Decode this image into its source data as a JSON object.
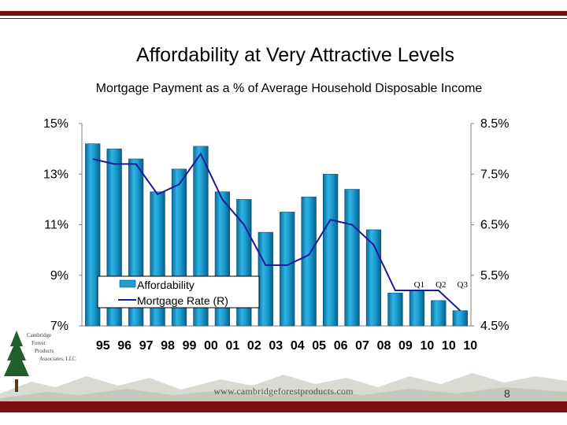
{
  "slide": {
    "title": "Affordability at Very Attractive Levels",
    "subtitle": "Mortgage Payment as a % of Average Household Disposable Income",
    "website": "www.cambridgeforestproducts.com",
    "page_number": "8"
  },
  "logo": {
    "line1": "Cambridge",
    "line2": "Forest",
    "line3": "Products",
    "line4": "Associates, LLC"
  },
  "colors": {
    "brand_red": "#7a0e10",
    "bar_fill": "#1f9fd0",
    "bar_dark": "#0a6f99",
    "line": "#1a1a9c"
  },
  "chart_data": {
    "type": "bar",
    "categories": [
      "95",
      "96",
      "97",
      "98",
      "99",
      "00",
      "01",
      "02",
      "03",
      "04",
      "05",
      "06",
      "07",
      "08",
      "09",
      "10",
      "10",
      "10"
    ],
    "quarter_labels": [
      "Q1",
      "Q2",
      "Q3"
    ],
    "series": [
      {
        "name": "Affordability",
        "axis": "left",
        "type": "bar",
        "values": [
          14.2,
          14.0,
          13.6,
          12.3,
          13.2,
          14.1,
          12.3,
          12.0,
          10.7,
          11.5,
          12.1,
          13.0,
          12.4,
          10.8,
          8.3,
          8.4,
          8.0,
          7.6
        ]
      },
      {
        "name": "Mortgage Rate (R)",
        "axis": "right",
        "type": "line",
        "values": [
          7.8,
          7.7,
          7.7,
          7.1,
          7.3,
          7.9,
          7.0,
          6.5,
          5.7,
          5.7,
          5.9,
          6.6,
          6.5,
          6.1,
          5.2,
          5.2,
          5.2,
          4.8
        ]
      }
    ],
    "left_axis": {
      "ylim": [
        7,
        15
      ],
      "ticks": [
        "15%",
        "13%",
        "11%",
        "9%",
        "7%"
      ],
      "tick_values": [
        15,
        13,
        11,
        9,
        7
      ]
    },
    "right_axis": {
      "ylim": [
        4.5,
        8.5
      ],
      "ticks": [
        "8.5%",
        "7.5%",
        "6.5%",
        "5.5%",
        "4.5%"
      ],
      "tick_values": [
        8.5,
        7.5,
        6.5,
        5.5,
        4.5
      ]
    },
    "legend": {
      "position": "bottom-left",
      "entries": [
        "Affordability",
        "Mortgage Rate (R)"
      ]
    },
    "grid": false
  }
}
